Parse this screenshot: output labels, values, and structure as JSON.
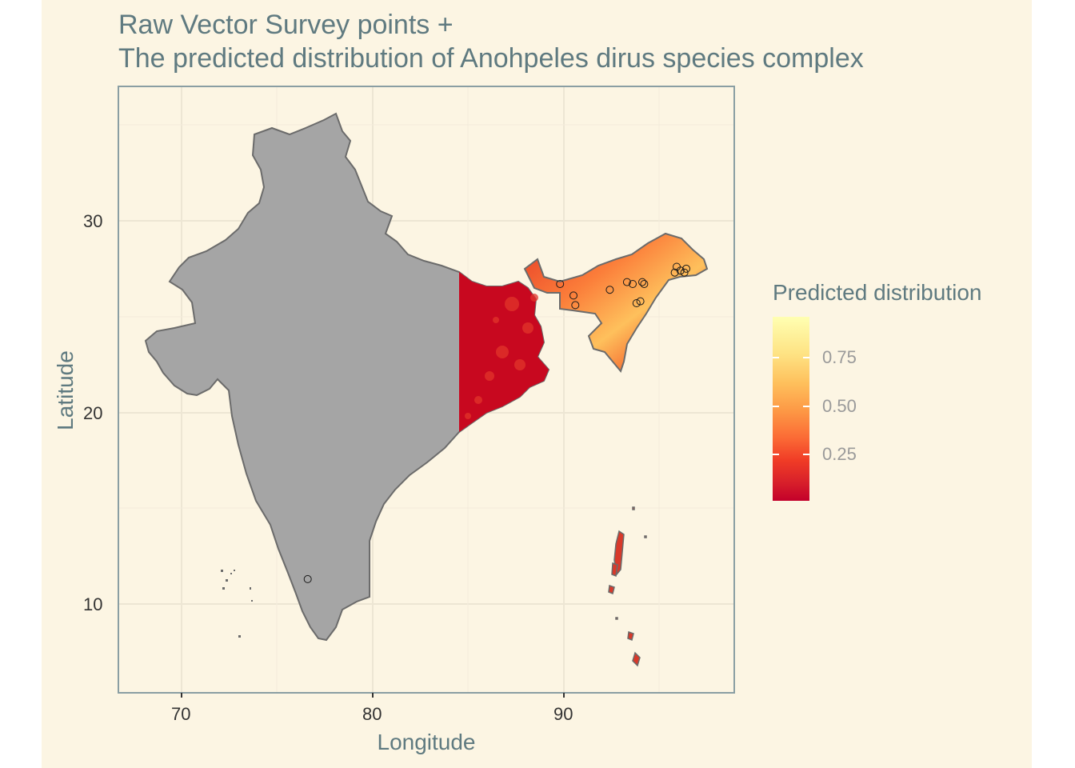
{
  "title": {
    "line1": "Raw Vector Survey points +",
    "line2": "The predicted distribution of Anohpeles dirus species complex"
  },
  "axes": {
    "x": {
      "label": "Longitude",
      "ticks": [
        "70",
        "80",
        "90"
      ]
    },
    "y": {
      "label": "Latitude",
      "ticks": [
        "30",
        "20",
        "10"
      ]
    }
  },
  "legend": {
    "title": "Predicted distribution",
    "labels": [
      "0.75",
      "0.50",
      "0.25"
    ],
    "palette": [
      "#c3002a",
      "#f03c26",
      "#fd9644",
      "#fee384",
      "#ffffb2"
    ]
  },
  "colors": {
    "panel_background": "#fcf5e3",
    "land_no_prediction": "#a5a5a5",
    "land_outline": "#6b6b6b",
    "grid": "#ede6d4",
    "title_text": "#5f7a80"
  },
  "map_data": {
    "region": "India",
    "survey_points": [
      {
        "lon": 76.6,
        "lat": 11.3
      },
      {
        "lon": 89.8,
        "lat": 26.7
      },
      {
        "lon": 90.5,
        "lat": 26.1
      },
      {
        "lon": 90.6,
        "lat": 25.6
      },
      {
        "lon": 92.4,
        "lat": 26.4
      },
      {
        "lon": 93.3,
        "lat": 26.8
      },
      {
        "lon": 93.6,
        "lat": 26.7
      },
      {
        "lon": 94.1,
        "lat": 26.8
      },
      {
        "lon": 94.2,
        "lat": 26.7
      },
      {
        "lon": 93.8,
        "lat": 25.7
      },
      {
        "lon": 94.0,
        "lat": 25.8
      },
      {
        "lon": 95.8,
        "lat": 27.3
      },
      {
        "lon": 95.9,
        "lat": 27.6
      },
      {
        "lon": 96.1,
        "lat": 27.4
      },
      {
        "lon": 96.3,
        "lat": 27.3
      },
      {
        "lon": 96.4,
        "lat": 27.5
      }
    ]
  }
}
